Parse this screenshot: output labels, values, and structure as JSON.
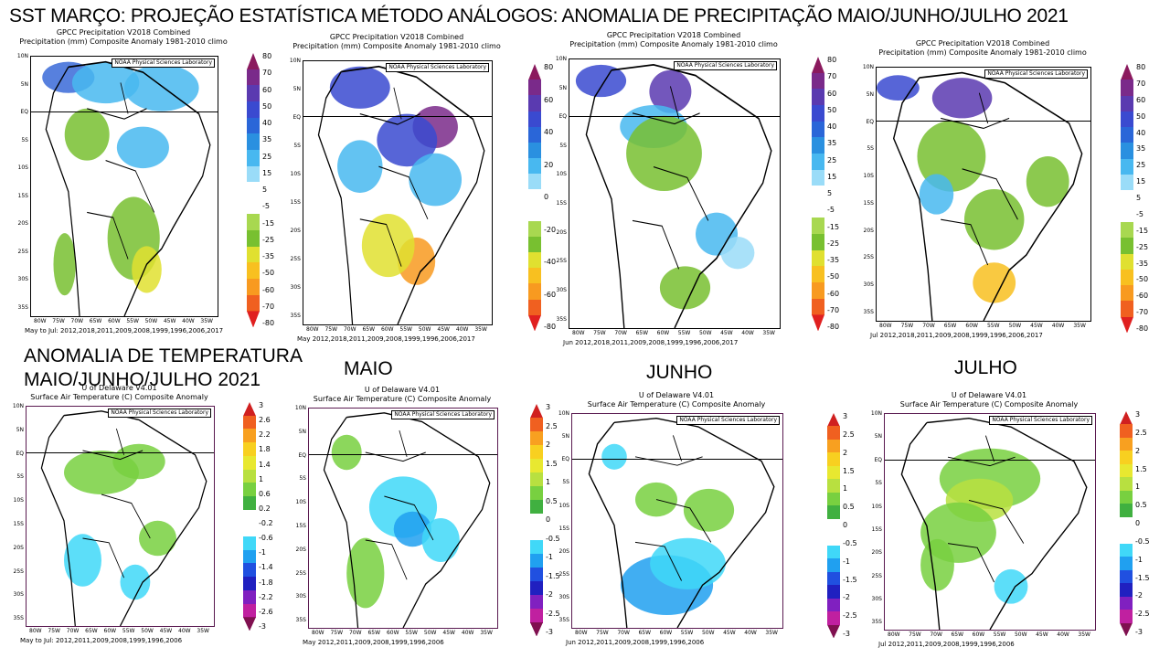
{
  "headline": "SST MARÇO: PROJEÇÃO ESTATÍSTICA MÉTODO ANÁLOGOS: ANOMALIA DE PRECIPITAÇÃO MAIO/JUNHO/JULHO  2021",
  "temp_headline": [
    "ANOMALIA DE TEMPERATURA",
    "MAIO/JUNHO/JULHO  2021"
  ],
  "month_labels": [
    "MAIO",
    "JUNHO",
    "JULHO"
  ],
  "credit": "NOAA Physical Sciences Laboratory",
  "lat_labels": [
    "10N",
    "5N",
    "EQ",
    "5S",
    "10S",
    "15S",
    "20S",
    "25S",
    "30S",
    "35S"
  ],
  "lon_labels": [
    "80W",
    "75W",
    "70W",
    "65W",
    "60W",
    "55W",
    "50W",
    "45W",
    "40W",
    "35W"
  ],
  "precip_header": [
    "GPCC Precipitation V2018 Combined",
    "Precipitation (mm) Composite Anomaly 1981-2010 climo"
  ],
  "temp_header": [
    "U of Delaware V4.01",
    "Surface Air Temperature (C) Composite Anomaly"
  ],
  "precip_panels": [
    {
      "footer": "May to Jul: 2012,2018,2011,2009,2008,1999,1996,2006,2017"
    },
    {
      "footer": "May 2012,2018,2011,2009,2008,1999,1996,2006,2017"
    },
    {
      "footer": "Jun 2012,2018,2011,2009,2008,1999,1996,2006,2017"
    },
    {
      "footer": "Jul 2012,2018,2011,2009,2008,1999,1996,2006,2017"
    }
  ],
  "temp_panels": [
    {
      "footer": "May to Jul: 2012,2011,2009,2008,1999,1996,2006"
    },
    {
      "footer": "May 2012,2011,2009,2008,1999,1996,2006"
    },
    {
      "footer": "Jun 2012,2011,2009,2008,1999,1996,2006"
    },
    {
      "footer": "Jul 2012,2011,2009,2008,1999,1996,2006"
    }
  ],
  "colorbars": {
    "precip_a": [
      "80",
      "70",
      "60",
      "50",
      "40",
      "35",
      "25",
      "15",
      "5",
      "-5",
      "-15",
      "-25",
      "-35",
      "-50",
      "-60",
      "-70",
      "-80"
    ],
    "precip_b": [
      "80",
      "60",
      "40",
      "20",
      "0",
      "-20",
      "-40",
      "-60",
      "-80"
    ],
    "temp_a": [
      "3",
      "2.6",
      "2.2",
      "1.8",
      "1.4",
      "1",
      "0.6",
      "0.2",
      "-0.2",
      "-0.6",
      "-1",
      "-1.4",
      "-1.8",
      "-2.2",
      "-2.6",
      "-3"
    ],
    "temp_b": [
      "3",
      "2.5",
      "2",
      "1.5",
      "1",
      "0.5",
      "0",
      "-0.5",
      "-1",
      "-1.5",
      "-2",
      "-2.5",
      "-3"
    ],
    "precip_colors": [
      "#8b1a5e",
      "#7a2a8a",
      "#5a3ab0",
      "#3a4ad0",
      "#2a66d8",
      "#2a90e0",
      "#48b8f0",
      "#9adcf8",
      "#ffffff",
      "#ffffff",
      "#a8d850",
      "#78c030",
      "#e0e030",
      "#f8c020",
      "#f89a20",
      "#f06020",
      "#e02020"
    ],
    "temp_colors": [
      "#d02020",
      "#f06020",
      "#f8a020",
      "#f8d020",
      "#e8e830",
      "#b8e040",
      "#78d040",
      "#40b040",
      "#ffffff",
      "#ffffff",
      "#40d8f8",
      "#20a0f0",
      "#2050e0",
      "#2020c0",
      "#8020c0",
      "#c020a0",
      "#801050"
    ]
  }
}
